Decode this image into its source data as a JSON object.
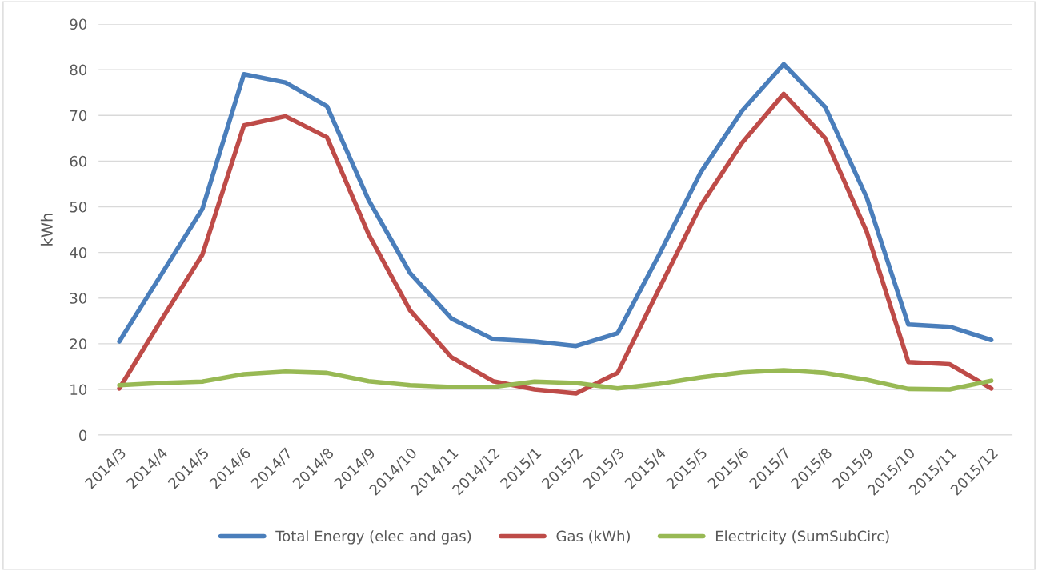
{
  "chart_data": {
    "type": "line",
    "ylabel": "kWh",
    "categories": [
      "2014/3",
      "2014/4",
      "2014/5",
      "2014/6",
      "2014/7",
      "2014/8",
      "2014/9",
      "2014/10",
      "2014/11",
      "2014/12",
      "2015/1",
      "2015/2",
      "2015/3",
      "2015/4",
      "2015/5",
      "2015/6",
      "2015/7",
      "2015/8",
      "2015/9",
      "2015/10",
      "2015/11",
      "2015/12"
    ],
    "series": [
      {
        "name": "Total Energy (elec and gas)",
        "color": "#4a7ebb",
        "values": [
          20.5,
          35,
          49.5,
          79,
          77.2,
          72,
          51.5,
          35.5,
          25.5,
          21,
          20.5,
          19.5,
          22.3,
          39.5,
          57.5,
          71,
          81.2,
          71.8,
          52,
          24.2,
          23.7,
          20.8
        ]
      },
      {
        "name": "Gas (kWh)",
        "color": "#be4b48",
        "values": [
          10.2,
          25,
          39.5,
          67.8,
          69.8,
          65.2,
          44,
          27.3,
          17,
          11.8,
          10,
          9.1,
          13.6,
          32,
          50.2,
          64,
          74.7,
          65,
          44.5,
          16,
          15.5,
          10.2
        ]
      },
      {
        "name": "Electricity (SumSubCirc)",
        "color": "#98b954",
        "values": [
          10.9,
          11.4,
          11.7,
          13.3,
          13.9,
          13.6,
          11.8,
          10.9,
          10.5,
          10.5,
          11.7,
          11.4,
          10.2,
          11.2,
          12.6,
          13.7,
          14.2,
          13.6,
          12.1,
          10.1,
          10.0,
          11.9
        ]
      }
    ],
    "ylim": [
      0,
      90
    ],
    "yticks": [
      0,
      10,
      20,
      30,
      40,
      50,
      60,
      70,
      80,
      90
    ],
    "grid": "y",
    "legend": "bottom",
    "marker": "none",
    "line_style": "solid"
  }
}
